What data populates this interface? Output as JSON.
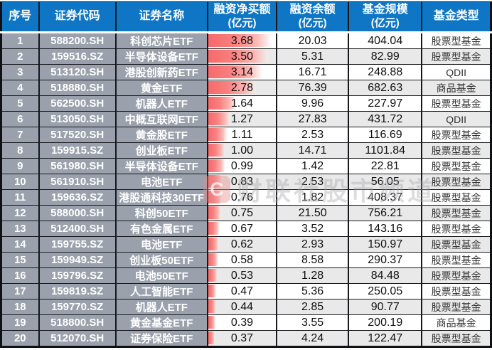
{
  "watermark": {
    "logo_letter": "C",
    "text": "财联社股市频道"
  },
  "colors": {
    "header_blue": "#0e76c4",
    "label_slate_gray": "#9aa1ac",
    "alt_row_gray": "#e9e9e9",
    "databar_red": "#f8696b",
    "grid_dark": "#17181c"
  },
  "header": [
    {
      "line1": "序号",
      "line2": ""
    },
    {
      "line1": "证券代码",
      "line2": ""
    },
    {
      "line1": "证券名称",
      "line2": ""
    },
    {
      "line1": "融资净买额",
      "line2": "(亿元)"
    },
    {
      "line1": "融资余额",
      "line2": "(亿元)"
    },
    {
      "line1": "基金规模",
      "line2": "(亿元)"
    },
    {
      "line1": "基金类型",
      "line2": ""
    }
  ],
  "chart_data": {
    "type": "table",
    "title": "",
    "columns": [
      "序号",
      "证券代码",
      "证券名称",
      "融资净买额(亿元)",
      "融资余额(亿元)",
      "基金规模(亿元)",
      "基金类型"
    ],
    "databar": {
      "column": "融资净买额(亿元)",
      "max": 3.68,
      "max_width_pct": 95,
      "color": "#f8696b"
    },
    "rows": [
      [
        "1",
        "588200.SH",
        "科创芯片ETF",
        "3.68",
        "20.03",
        "404.04",
        "股票型基金"
      ],
      [
        "2",
        "159516.SZ",
        "半导体设备ETF",
        "3.50",
        "5.31",
        "82.99",
        "股票型基金"
      ],
      [
        "3",
        "513120.SH",
        "港股创新药ETF",
        "3.14",
        "16.71",
        "248.88",
        "QDII"
      ],
      [
        "4",
        "518880.SH",
        "黄金ETF",
        "2.78",
        "76.39",
        "682.63",
        "商品基金"
      ],
      [
        "5",
        "562500.SH",
        "机器人ETF",
        "1.64",
        "9.96",
        "227.97",
        "股票型基金"
      ],
      [
        "6",
        "513050.SH",
        "中概互联网ETF",
        "1.27",
        "27.83",
        "431.72",
        "QDII"
      ],
      [
        "7",
        "517520.SH",
        "黄金股ETF",
        "1.11",
        "2.53",
        "116.69",
        "股票型基金"
      ],
      [
        "8",
        "159915.SZ",
        "创业板ETF",
        "1.00",
        "14.71",
        "1101.84",
        "股票型基金"
      ],
      [
        "9",
        "561980.SH",
        "半导体设备ETF",
        "0.99",
        "1.42",
        "22.81",
        "股票型基金"
      ],
      [
        "10",
        "561910.SH",
        "电池ETF",
        "0.83",
        "2.53",
        "56.05",
        "股票型基金"
      ],
      [
        "11",
        "159636.SZ",
        "港股通科技30ETF",
        "0.76",
        "1.82",
        "408.37",
        "股票型基金"
      ],
      [
        "12",
        "588000.SH",
        "科创50ETF",
        "0.75",
        "21.50",
        "756.21",
        "股票型基金"
      ],
      [
        "13",
        "512400.SH",
        "有色金属ETF",
        "0.67",
        "3.52",
        "143.16",
        "股票型基金"
      ],
      [
        "14",
        "159755.SZ",
        "电池ETF",
        "0.62",
        "2.93",
        "150.97",
        "股票型基金"
      ],
      [
        "15",
        "159949.SZ",
        "创业板50ETF",
        "0.58",
        "8.58",
        "290.37",
        "股票型基金"
      ],
      [
        "16",
        "159796.SZ",
        "电池50ETF",
        "0.53",
        "1.28",
        "84.48",
        "股票型基金"
      ],
      [
        "17",
        "159819.SZ",
        "人工智能ETF",
        "0.47",
        "5.36",
        "250.05",
        "股票型基金"
      ],
      [
        "18",
        "159770.SZ",
        "机器人ETF",
        "0.44",
        "2.85",
        "90.77",
        "股票型基金"
      ],
      [
        "19",
        "518800.SH",
        "黄金基金ETF",
        "0.39",
        "3.55",
        "200.19",
        "商品基金"
      ],
      [
        "20",
        "512070.SH",
        "证券保险ETF",
        "0.37",
        "4.24",
        "122.47",
        "股票型基金"
      ]
    ]
  }
}
